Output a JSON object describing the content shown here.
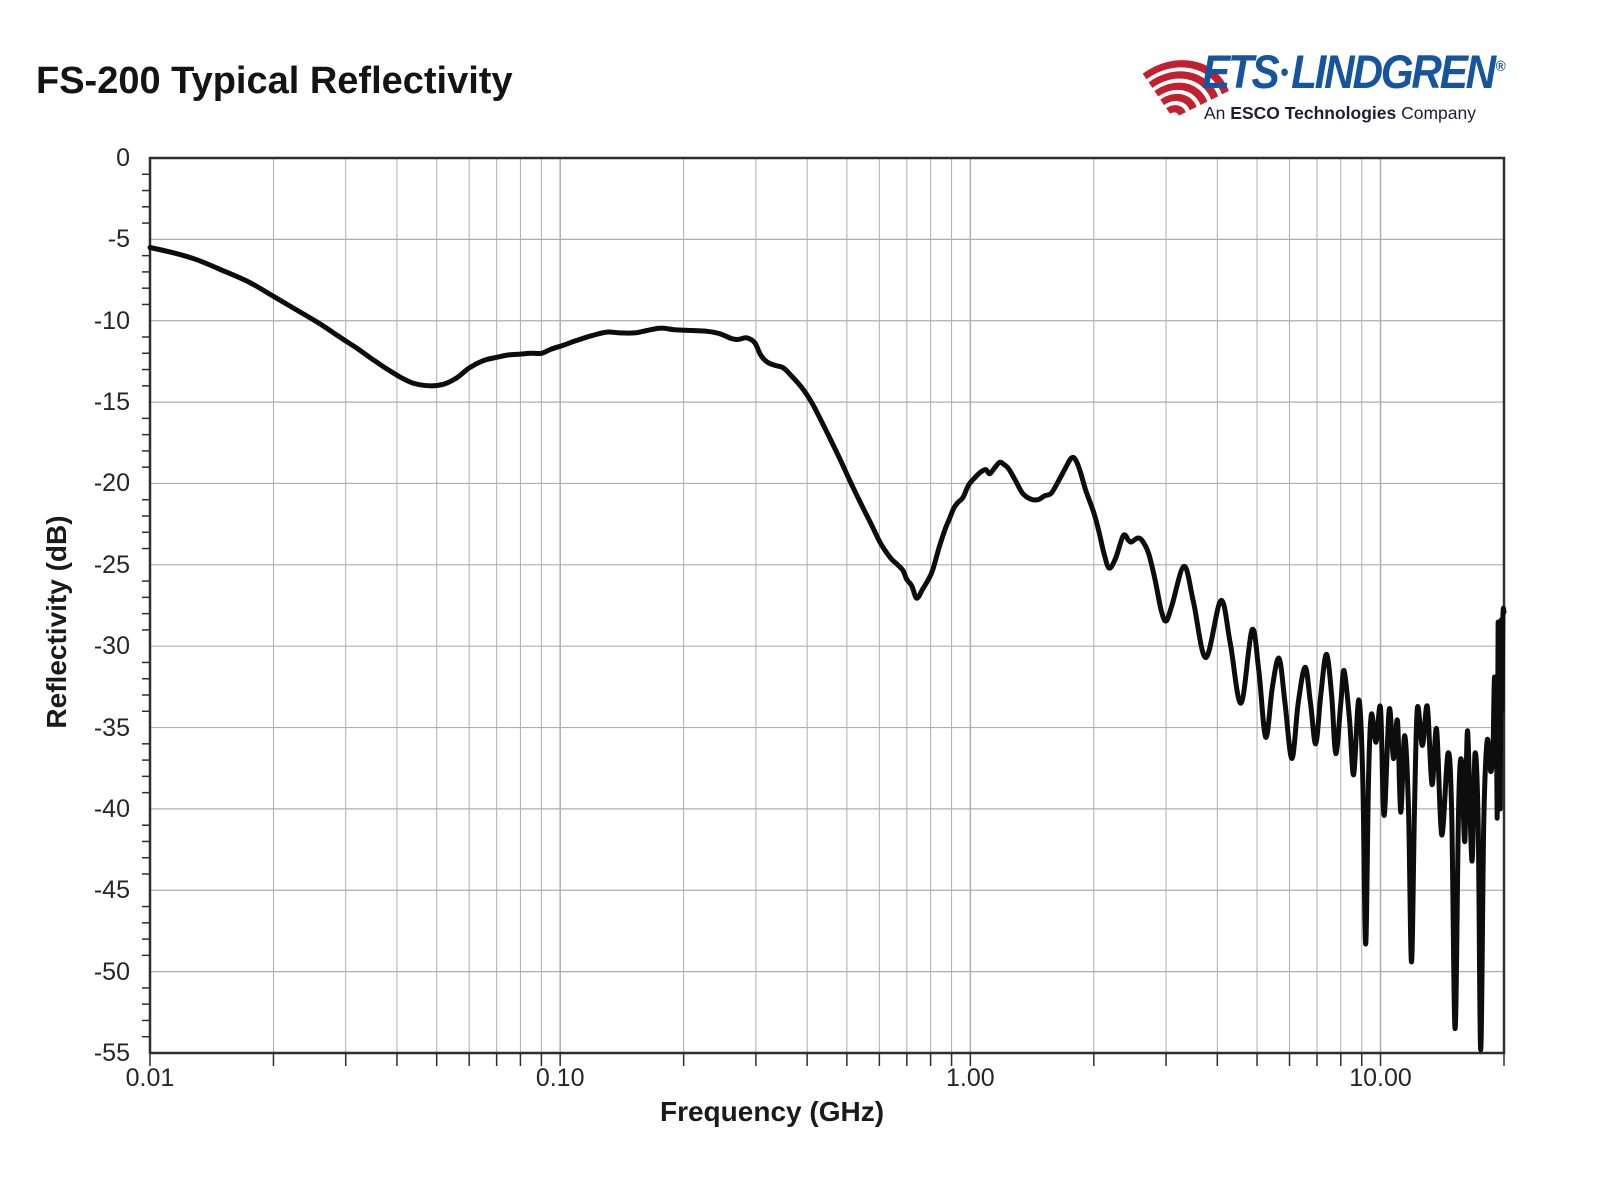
{
  "page": {
    "title": "FS-200 Typical Reflectivity"
  },
  "logo": {
    "brand_left": "ETS",
    "brand_dot": "•",
    "brand_right": "LINDGREN",
    "registered": "®",
    "tagline_prefix": "An ",
    "tagline_bold": "ESCO Technologies",
    "tagline_suffix": " Company",
    "brand_color": "#17549e",
    "icon_color": "#c2202f"
  },
  "chart_data": {
    "type": "line",
    "title": "FS-200 Typical Reflectivity",
    "xlabel": "Frequency (GHz)",
    "ylabel": "Reflectivity (dB)",
    "xscale": "log",
    "xlim": [
      0.01,
      20
    ],
    "ylim": [
      -55,
      0
    ],
    "grid": {
      "x_minor_log": true,
      "y_major_step": 5,
      "legend": "none"
    },
    "line_color": "#0d0d0d",
    "line_width": 5,
    "grid_color": "#aeaeae",
    "axis_color": "#2e2e2e",
    "x_ticks": [
      {
        "label": "0.01",
        "value": 0.01
      },
      {
        "label": "0.10",
        "value": 0.1
      },
      {
        "label": "1.00",
        "value": 1.0
      },
      {
        "label": "10.00",
        "value": 10.0
      }
    ],
    "y_ticks": [
      {
        "label": "0",
        "value": 0
      },
      {
        "label": "-5",
        "value": -5
      },
      {
        "label": "-10",
        "value": -10
      },
      {
        "label": "-15",
        "value": -15
      },
      {
        "label": "-20",
        "value": -20
      },
      {
        "label": "-25",
        "value": -25
      },
      {
        "label": "-30",
        "value": -30
      },
      {
        "label": "-35",
        "value": -35
      },
      {
        "label": "-40",
        "value": -40
      },
      {
        "label": "-45",
        "value": -45
      },
      {
        "label": "-50",
        "value": -50
      },
      {
        "label": "-55",
        "value": -55
      }
    ],
    "series": [
      {
        "name": "Typical Reflectivity",
        "points": [
          [
            0.01,
            -5.5
          ],
          [
            0.0115,
            -5.85
          ],
          [
            0.013,
            -6.25
          ],
          [
            0.015,
            -6.9
          ],
          [
            0.0175,
            -7.65
          ],
          [
            0.02,
            -8.5
          ],
          [
            0.023,
            -9.4
          ],
          [
            0.026,
            -10.2
          ],
          [
            0.029,
            -11.0
          ],
          [
            0.032,
            -11.7
          ],
          [
            0.035,
            -12.4
          ],
          [
            0.038,
            -13.0
          ],
          [
            0.041,
            -13.5
          ],
          [
            0.044,
            -13.85
          ],
          [
            0.048,
            -14.0
          ],
          [
            0.052,
            -13.9
          ],
          [
            0.056,
            -13.5
          ],
          [
            0.06,
            -12.9
          ],
          [
            0.065,
            -12.45
          ],
          [
            0.07,
            -12.25
          ],
          [
            0.075,
            -12.1
          ],
          [
            0.08,
            -12.05
          ],
          [
            0.085,
            -12.0
          ],
          [
            0.09,
            -12.0
          ],
          [
            0.095,
            -11.75
          ],
          [
            0.102,
            -11.5
          ],
          [
            0.11,
            -11.2
          ],
          [
            0.12,
            -10.9
          ],
          [
            0.13,
            -10.7
          ],
          [
            0.14,
            -10.75
          ],
          [
            0.152,
            -10.75
          ],
          [
            0.163,
            -10.6
          ],
          [
            0.176,
            -10.45
          ],
          [
            0.19,
            -10.55
          ],
          [
            0.21,
            -10.6
          ],
          [
            0.228,
            -10.65
          ],
          [
            0.245,
            -10.8
          ],
          [
            0.262,
            -11.1
          ],
          [
            0.272,
            -11.15
          ],
          [
            0.285,
            -11.05
          ],
          [
            0.298,
            -11.35
          ],
          [
            0.308,
            -12.1
          ],
          [
            0.32,
            -12.55
          ],
          [
            0.335,
            -12.75
          ],
          [
            0.35,
            -12.9
          ],
          [
            0.365,
            -13.35
          ],
          [
            0.388,
            -14.1
          ],
          [
            0.41,
            -15.0
          ],
          [
            0.432,
            -16.1
          ],
          [
            0.456,
            -17.3
          ],
          [
            0.483,
            -18.6
          ],
          [
            0.51,
            -19.9
          ],
          [
            0.54,
            -21.2
          ],
          [
            0.573,
            -22.5
          ],
          [
            0.605,
            -23.7
          ],
          [
            0.64,
            -24.6
          ],
          [
            0.665,
            -25.0
          ],
          [
            0.685,
            -25.35
          ],
          [
            0.7,
            -25.9
          ],
          [
            0.72,
            -26.3
          ],
          [
            0.74,
            -27.05
          ],
          [
            0.765,
            -26.5
          ],
          [
            0.79,
            -25.9
          ],
          [
            0.81,
            -25.3
          ],
          [
            0.84,
            -23.9
          ],
          [
            0.87,
            -22.75
          ],
          [
            0.89,
            -22.15
          ],
          [
            0.91,
            -21.55
          ],
          [
            0.93,
            -21.2
          ],
          [
            0.96,
            -20.85
          ],
          [
            0.99,
            -20.1
          ],
          [
            1.03,
            -19.6
          ],
          [
            1.06,
            -19.3
          ],
          [
            1.09,
            -19.15
          ],
          [
            1.115,
            -19.4
          ],
          [
            1.145,
            -19.05
          ],
          [
            1.18,
            -18.7
          ],
          [
            1.21,
            -18.85
          ],
          [
            1.24,
            -19.1
          ],
          [
            1.29,
            -19.85
          ],
          [
            1.34,
            -20.6
          ],
          [
            1.4,
            -20.95
          ],
          [
            1.46,
            -21.0
          ],
          [
            1.52,
            -20.75
          ],
          [
            1.575,
            -20.6
          ],
          [
            1.64,
            -19.85
          ],
          [
            1.71,
            -19.0
          ],
          [
            1.76,
            -18.45
          ],
          [
            1.8,
            -18.5
          ],
          [
            1.85,
            -19.2
          ],
          [
            1.91,
            -20.4
          ],
          [
            2.0,
            -21.8
          ],
          [
            2.06,
            -23.0
          ],
          [
            2.12,
            -24.35
          ],
          [
            2.18,
            -25.2
          ],
          [
            2.26,
            -24.6
          ],
          [
            2.36,
            -23.2
          ],
          [
            2.43,
            -23.5
          ],
          [
            2.47,
            -23.6
          ],
          [
            2.56,
            -23.35
          ],
          [
            2.63,
            -23.55
          ],
          [
            2.72,
            -24.3
          ],
          [
            2.82,
            -25.9
          ],
          [
            2.92,
            -27.8
          ],
          [
            3.0,
            -28.45
          ],
          [
            3.1,
            -27.5
          ],
          [
            3.32,
            -25.1
          ],
          [
            3.5,
            -27.3
          ],
          [
            3.75,
            -30.7
          ],
          [
            4.08,
            -27.2
          ],
          [
            4.3,
            -29.8
          ],
          [
            4.57,
            -33.5
          ],
          [
            4.86,
            -29.0
          ],
          [
            5.05,
            -31.5
          ],
          [
            5.25,
            -35.6
          ],
          [
            5.45,
            -32.5
          ],
          [
            5.66,
            -30.75
          ],
          [
            5.85,
            -33.5
          ],
          [
            6.08,
            -36.9
          ],
          [
            6.3,
            -33.5
          ],
          [
            6.55,
            -31.3
          ],
          [
            6.75,
            -33.5
          ],
          [
            6.95,
            -36.0
          ],
          [
            7.15,
            -33.0
          ],
          [
            7.38,
            -30.5
          ],
          [
            7.6,
            -33.0
          ],
          [
            7.78,
            -36.6
          ],
          [
            8.0,
            -33.5
          ],
          [
            8.15,
            -31.5
          ],
          [
            8.4,
            -34.5
          ],
          [
            8.6,
            -37.9
          ],
          [
            8.85,
            -33.3
          ],
          [
            9.05,
            -38.0
          ],
          [
            9.2,
            -48.3
          ],
          [
            9.35,
            -38.0
          ],
          [
            9.5,
            -34.2
          ],
          [
            9.75,
            -35.9
          ],
          [
            10.0,
            -33.8
          ],
          [
            10.2,
            -40.4
          ],
          [
            10.5,
            -33.9
          ],
          [
            10.75,
            -36.9
          ],
          [
            11.0,
            -34.6
          ],
          [
            11.2,
            -40.2
          ],
          [
            11.45,
            -35.5
          ],
          [
            11.7,
            -40.0
          ],
          [
            11.9,
            -49.4
          ],
          [
            12.1,
            -40.0
          ],
          [
            12.3,
            -33.8
          ],
          [
            12.65,
            -36.1
          ],
          [
            13.0,
            -33.7
          ],
          [
            13.35,
            -38.5
          ],
          [
            13.7,
            -35.1
          ],
          [
            14.1,
            -41.6
          ],
          [
            14.6,
            -36.6
          ],
          [
            14.9,
            -40.0
          ],
          [
            15.2,
            -53.5
          ],
          [
            15.5,
            -40.0
          ],
          [
            15.75,
            -37.0
          ],
          [
            16.05,
            -42.0
          ],
          [
            16.3,
            -35.2
          ],
          [
            16.7,
            -43.2
          ],
          [
            17.0,
            -36.6
          ],
          [
            17.3,
            -41.0
          ],
          [
            17.55,
            -54.8
          ],
          [
            17.85,
            -41.0
          ],
          [
            18.2,
            -35.8
          ],
          [
            18.55,
            -37.7
          ],
          [
            18.8,
            -36.3
          ],
          [
            18.95,
            -31.9
          ],
          [
            19.05,
            -36.0
          ],
          [
            19.15,
            -33.8
          ],
          [
            19.25,
            -40.5
          ],
          [
            19.35,
            -28.7
          ],
          [
            19.45,
            -33.0
          ],
          [
            19.52,
            -29.5
          ],
          [
            19.58,
            -40.0
          ],
          [
            19.68,
            -28.5
          ],
          [
            19.78,
            -34.0
          ],
          [
            19.88,
            -28.2
          ],
          [
            20.0,
            -27.9
          ]
        ]
      }
    ]
  }
}
